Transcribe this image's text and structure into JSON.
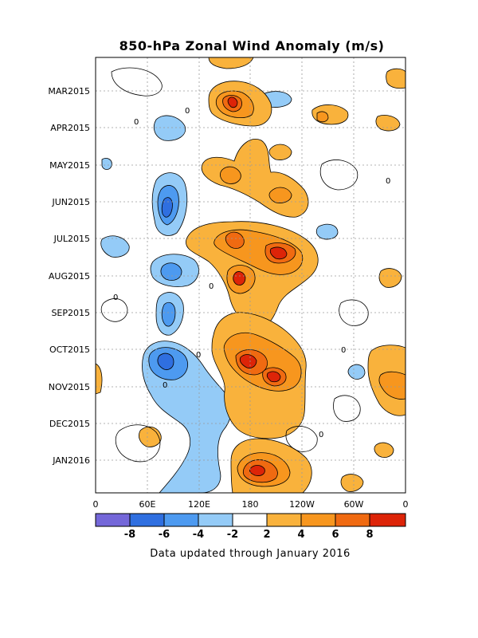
{
  "chart_data": {
    "type": "heatmap",
    "title": "850-hPa Zonal Wind Anomaly (m/s)",
    "xlabel": "",
    "ylabel": "",
    "x_ticks": [
      "0",
      "60E",
      "120E",
      "180",
      "120W",
      "60W",
      "0"
    ],
    "x_tick_degrees_east": [
      0,
      60,
      120,
      180,
      240,
      300,
      360
    ],
    "xlim": [
      0,
      360
    ],
    "y_ticks": [
      "MAR2015",
      "APR2015",
      "MAY2015",
      "JUN2015",
      "JUL2015",
      "AUG2015",
      "SEP2015",
      "OCT2015",
      "NOV2015",
      "DEC2015",
      "JAN2016"
    ],
    "ylim": [
      "2015-02-15",
      "2016-01-31"
    ],
    "grid": true,
    "colorbar": {
      "bounds": [
        -10,
        -8,
        -6,
        -4,
        -2,
        2,
        4,
        6,
        8,
        10
      ],
      "tick_labels": [
        "-8",
        "-6",
        "-4",
        "-2",
        "2",
        "4",
        "6",
        "8"
      ],
      "colors": [
        "#7467d9",
        "#2f6fe0",
        "#4d9af0",
        "#94cbf7",
        "#ffffff",
        "#f9b23c",
        "#f7961e",
        "#f06a11",
        "#dd2408"
      ]
    },
    "contour_label": "0",
    "features": [
      {
        "lon": 75,
        "date": "2015-04-05",
        "value": -3
      },
      {
        "lon": 82,
        "date": "2015-06-03",
        "value": -7
      },
      {
        "lon": 50,
        "date": "2015-06-25",
        "value": -3
      },
      {
        "lon": 80,
        "date": "2015-07-26",
        "value": -5
      },
      {
        "lon": 80,
        "date": "2015-09-01",
        "value": -6
      },
      {
        "lon": 75,
        "date": "2015-10-12",
        "value": -7
      },
      {
        "lon": 110,
        "date": "2015-11-08",
        "value": -3
      },
      {
        "lon": 150,
        "date": "2015-12-05",
        "value": -3
      },
      {
        "lon": 140,
        "date": "2016-01-15",
        "value": -3
      },
      {
        "lon": 178,
        "date": "2015-03-10",
        "value": 8
      },
      {
        "lon": 260,
        "date": "2015-03-15",
        "value": 3
      },
      {
        "lon": 200,
        "date": "2015-05-15",
        "value": 5
      },
      {
        "lon": 180,
        "date": "2015-07-05",
        "value": 6
      },
      {
        "lon": 215,
        "date": "2015-07-15",
        "value": 8
      },
      {
        "lon": 185,
        "date": "2015-07-30",
        "value": 9
      },
      {
        "lon": 205,
        "date": "2015-09-10",
        "value": 4
      },
      {
        "lon": 205,
        "date": "2015-10-12",
        "value": 8
      },
      {
        "lon": 225,
        "date": "2015-10-30",
        "value": 7
      },
      {
        "lon": 230,
        "date": "2015-12-01",
        "value": 4
      },
      {
        "lon": 210,
        "date": "2016-01-15",
        "value": 9
      },
      {
        "lon": 345,
        "date": "2015-10-25",
        "value": 4
      }
    ]
  },
  "footer": {
    "note": "Data updated through January 2016"
  }
}
